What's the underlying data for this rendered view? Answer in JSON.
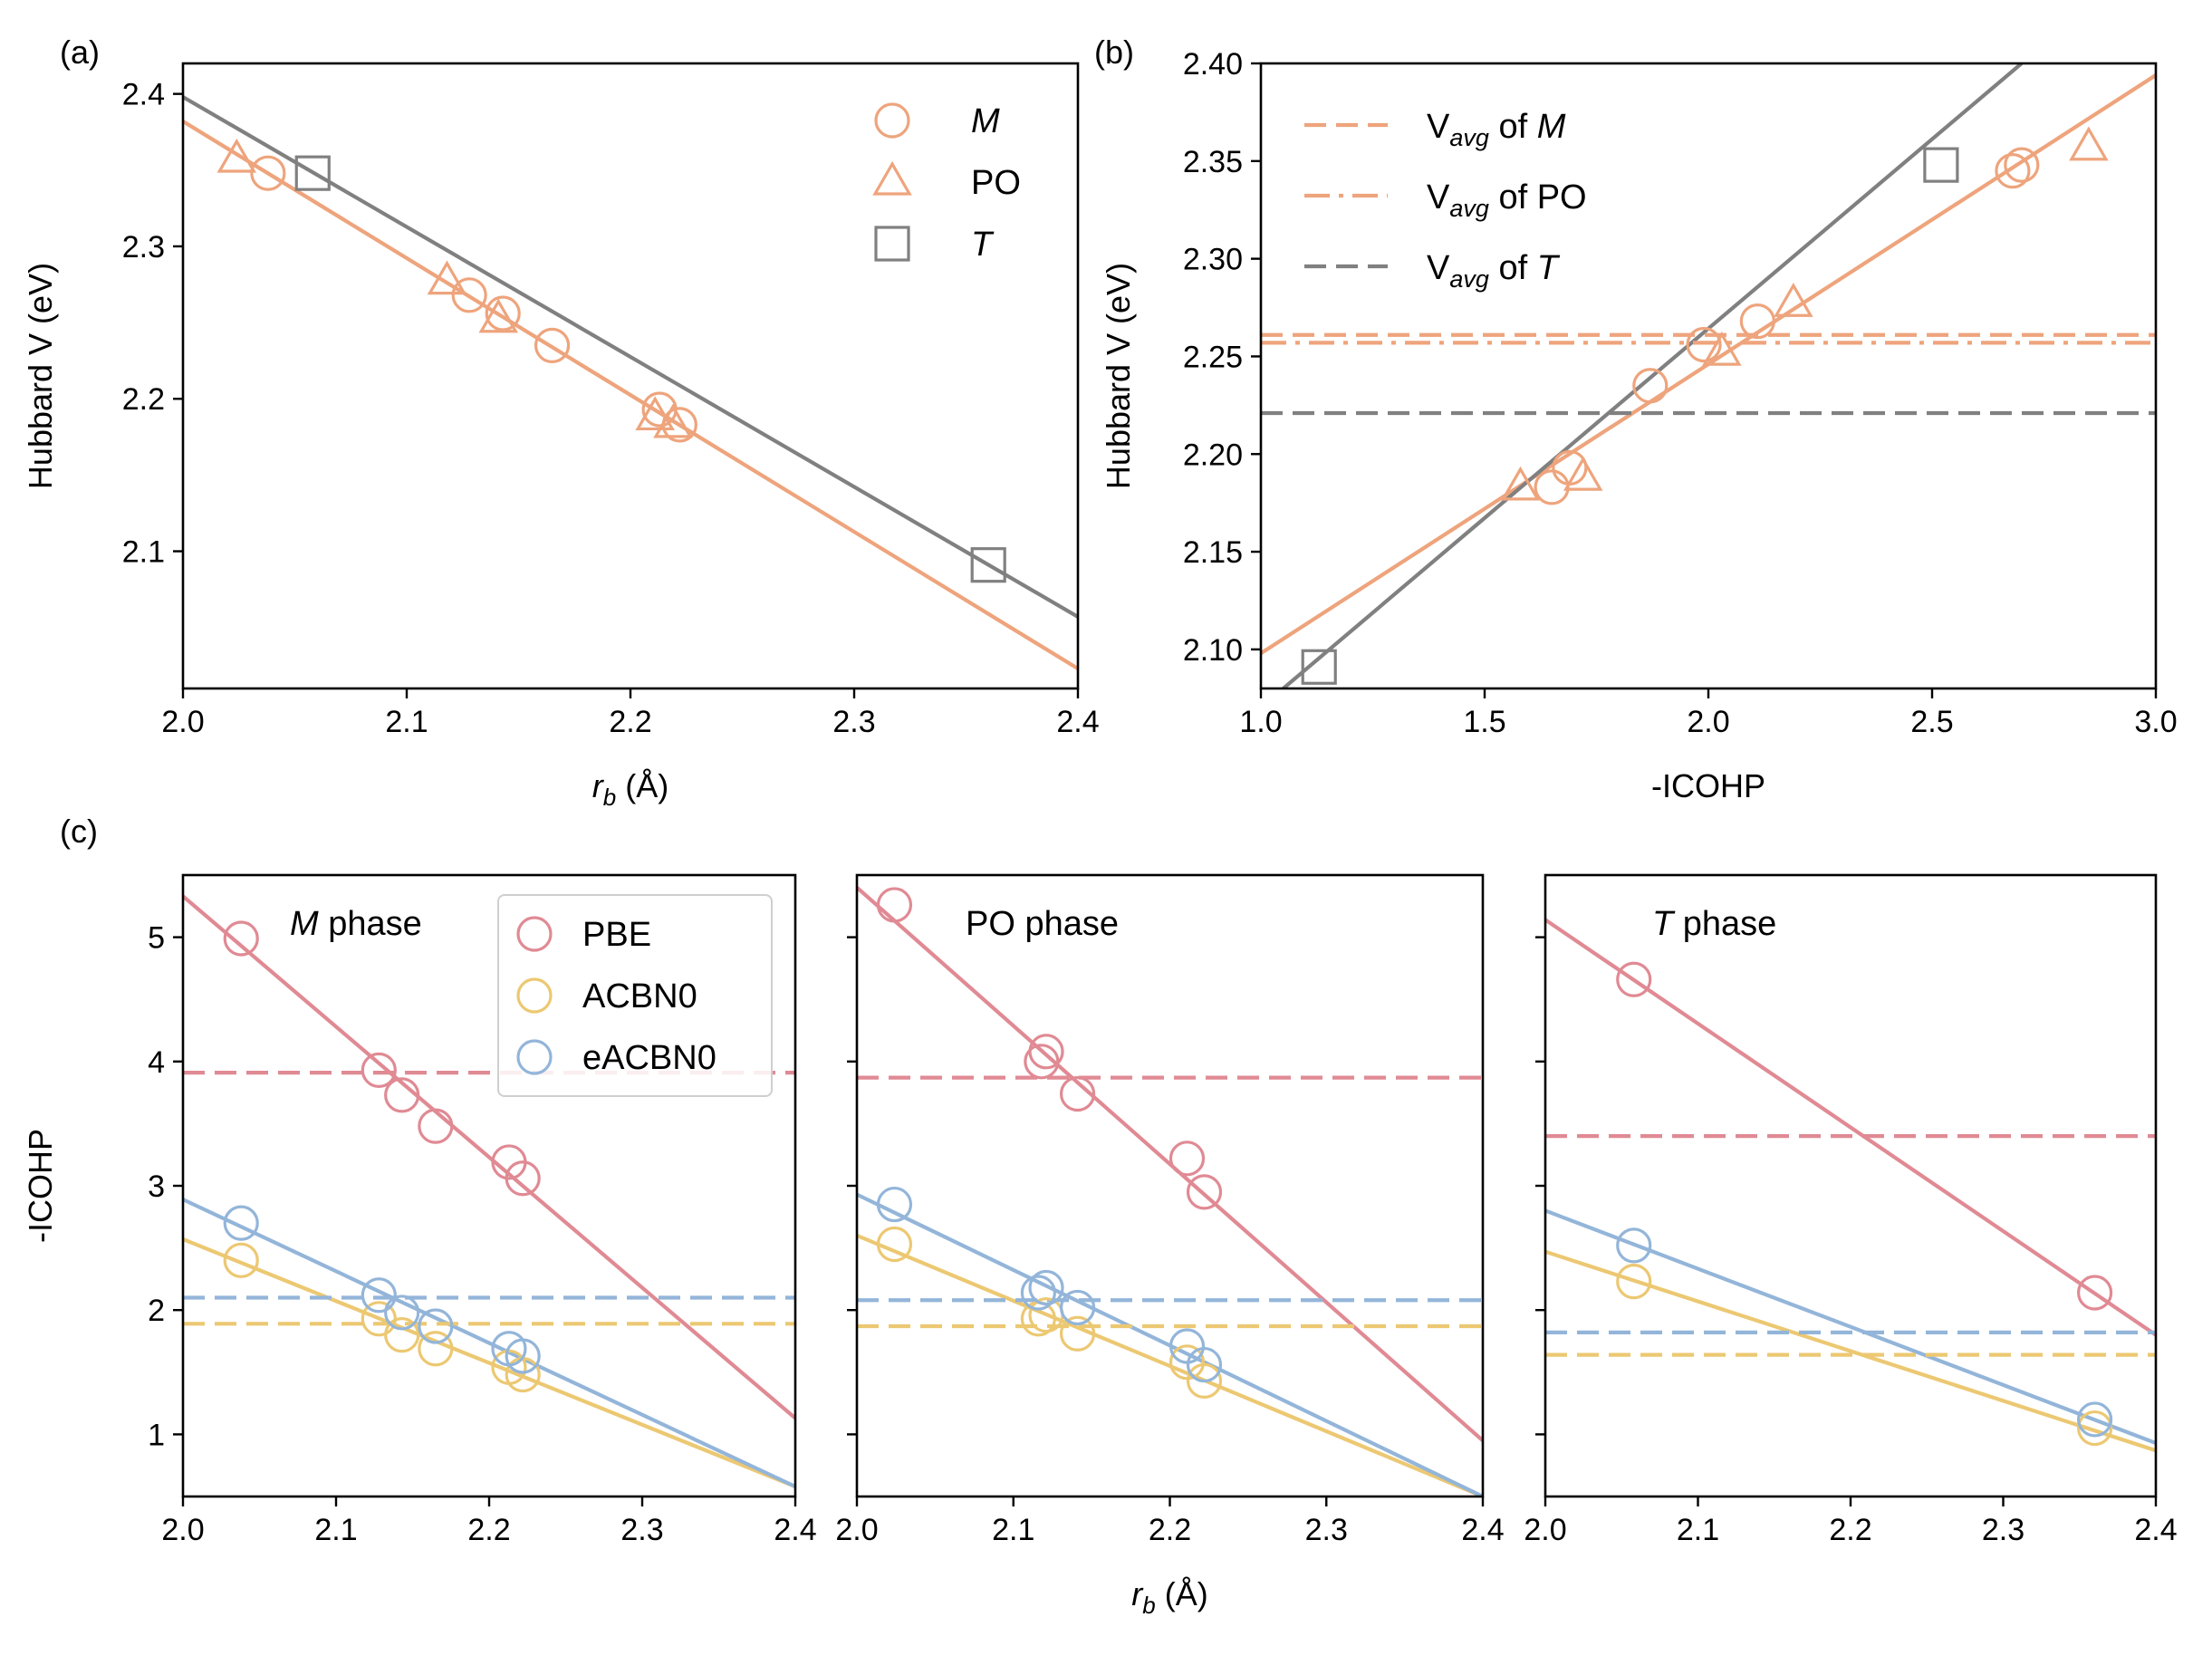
{
  "colors": {
    "M": "#eea47c",
    "PO": "#eea47c",
    "T": "#808080",
    "PBE": "#e08a94",
    "ACBN0": "#ecc872",
    "eACBN0": "#93b5d9"
  },
  "panel_labels": {
    "a": "(a)",
    "b": "(b)",
    "c": "(c)"
  },
  "chart_data": [
    {
      "id": "a",
      "type": "scatter",
      "xlabel_main": "r",
      "xlabel_sub": "b",
      "xlabel_unit": " (Å)",
      "ylabel": "Hubbard V (eV)",
      "xlim": [
        2.0,
        2.4
      ],
      "ylim": [
        2.01,
        2.42
      ],
      "xticks": [
        2.0,
        2.1,
        2.2,
        2.3,
        2.4
      ],
      "xtick_labels": [
        "2.0",
        "2.1",
        "2.2",
        "2.3",
        "2.4"
      ],
      "yticks": [
        2.1,
        2.2,
        2.3,
        2.4
      ],
      "ytick_labels": [
        "2.1",
        "2.2",
        "2.3",
        "2.4"
      ],
      "legend": [
        "M",
        "PO",
        "T"
      ],
      "series": [
        {
          "name": "M",
          "marker": "circle",
          "color": "#eea47c",
          "x": [
            2.038,
            2.128,
            2.143,
            2.165,
            2.213,
            2.222
          ],
          "y": [
            2.348,
            2.268,
            2.256,
            2.235,
            2.193,
            2.183
          ]
        },
        {
          "name": "PO",
          "marker": "triangle",
          "color": "#eea47c",
          "x": [
            2.024,
            2.118,
            2.141,
            2.211,
            2.219
          ],
          "y": [
            2.357,
            2.277,
            2.252,
            2.188,
            2.183
          ]
        },
        {
          "name": "T",
          "marker": "square",
          "color": "#808080",
          "x": [
            2.058,
            2.36
          ],
          "y": [
            2.348,
            2.091
          ]
        }
      ],
      "lines": [
        {
          "color": "#eea47c",
          "style": "solid",
          "x": [
            2.0,
            2.4
          ],
          "y": [
            2.382,
            2.023
          ]
        },
        {
          "color": "#808080",
          "style": "solid",
          "x": [
            2.0,
            2.4
          ],
          "y": [
            2.398,
            2.057
          ]
        }
      ]
    },
    {
      "id": "b",
      "type": "scatter",
      "xlabel": "-ICOHP",
      "ylabel": "Hubbard V (eV)",
      "xlim": [
        1.0,
        3.0
      ],
      "ylim": [
        2.08,
        2.4
      ],
      "xticks": [
        1.0,
        1.5,
        2.0,
        2.5,
        3.0
      ],
      "xtick_labels": [
        "1.0",
        "1.5",
        "2.0",
        "2.5",
        "3.0"
      ],
      "yticks": [
        2.1,
        2.15,
        2.2,
        2.25,
        2.3,
        2.35,
        2.4
      ],
      "ytick_labels": [
        "2.10",
        "2.15",
        "2.20",
        "2.25",
        "2.30",
        "2.35",
        "2.40"
      ],
      "legend": [
        {
          "pre": "V",
          "sub": "avg",
          "mid": " of ",
          "it": "M",
          "post": ""
        },
        {
          "pre": "V",
          "sub": "avg",
          "mid": " of PO",
          "it": "",
          "post": ""
        },
        {
          "pre": "V",
          "sub": "avg",
          "mid": " of ",
          "it": "T",
          "post": ""
        }
      ],
      "series": [
        {
          "name": "M",
          "marker": "circle",
          "color": "#eea47c",
          "x": [
            2.68,
            2.7,
            2.11,
            1.99,
            1.87,
            1.69,
            1.65
          ],
          "y": [
            2.345,
            2.348,
            2.268,
            2.256,
            2.235,
            2.193,
            2.183
          ]
        },
        {
          "name": "PO",
          "marker": "triangle",
          "color": "#eea47c",
          "x": [
            2.85,
            2.19,
            2.03,
            1.72,
            1.58
          ],
          "y": [
            2.357,
            2.277,
            2.252,
            2.188,
            2.183
          ]
        },
        {
          "name": "T",
          "marker": "square",
          "color": "#808080",
          "x": [
            2.52,
            1.13
          ],
          "y": [
            2.348,
            2.091
          ]
        }
      ],
      "lines": [
        {
          "color": "#eea47c",
          "style": "solid",
          "x": [
            1.0,
            3.0
          ],
          "y": [
            2.098,
            2.394
          ]
        },
        {
          "color": "#808080",
          "style": "solid",
          "x": [
            1.05,
            2.7
          ],
          "y": [
            2.08,
            2.4
          ]
        },
        {
          "color": "#eea47c",
          "style": "dashed",
          "x": [
            1.0,
            3.0
          ],
          "y": [
            2.261,
            2.261
          ]
        },
        {
          "color": "#eea47c",
          "style": "dashdot",
          "x": [
            1.0,
            3.0
          ],
          "y": [
            2.257,
            2.257
          ]
        },
        {
          "color": "#808080",
          "style": "dashed",
          "x": [
            1.0,
            3.0
          ],
          "y": [
            2.221,
            2.221
          ]
        }
      ]
    },
    {
      "id": "c1",
      "type": "scatter",
      "phase_it": "M",
      "phase_rest": " phase",
      "ylabel": "-ICOHP",
      "xlim": [
        2.0,
        2.4
      ],
      "ylim": [
        0.5,
        5.5
      ],
      "xticks": [
        2.0,
        2.1,
        2.2,
        2.3,
        2.4
      ],
      "xtick_labels": [
        "2.0",
        "2.1",
        "2.2",
        "2.3",
        "2.4"
      ],
      "yticks": [
        1,
        2,
        3,
        4,
        5
      ],
      "ytick_labels": [
        "1",
        "2",
        "3",
        "4",
        "5"
      ],
      "legend": [
        "PBE",
        "ACBN0",
        "eACBN0"
      ],
      "series": [
        {
          "name": "PBE",
          "marker": "circle",
          "color": "#e08a94",
          "x": [
            2.038,
            2.128,
            2.143,
            2.165,
            2.213,
            2.222
          ],
          "y": [
            4.99,
            3.93,
            3.73,
            3.48,
            3.19,
            3.06
          ]
        },
        {
          "name": "ACBN0",
          "marker": "circle",
          "color": "#ecc872",
          "x": [
            2.038,
            2.128,
            2.143,
            2.165,
            2.213,
            2.222
          ],
          "y": [
            2.4,
            1.93,
            1.8,
            1.69,
            1.54,
            1.48
          ]
        },
        {
          "name": "eACBN0",
          "marker": "circle",
          "color": "#93b5d9",
          "x": [
            2.038,
            2.128,
            2.143,
            2.165,
            2.213,
            2.222
          ],
          "y": [
            2.7,
            2.12,
            1.98,
            1.87,
            1.69,
            1.63
          ]
        }
      ],
      "lines": [
        {
          "color": "#e08a94",
          "style": "solid",
          "x": [
            2.0,
            2.4
          ],
          "y": [
            5.33,
            1.13
          ]
        },
        {
          "color": "#ecc872",
          "style": "solid",
          "x": [
            2.0,
            2.4
          ],
          "y": [
            2.57,
            0.58
          ]
        },
        {
          "color": "#93b5d9",
          "style": "solid",
          "x": [
            2.0,
            2.4
          ],
          "y": [
            2.89,
            0.58
          ]
        },
        {
          "color": "#e08a94",
          "style": "dashed",
          "x": [
            2.0,
            2.4
          ],
          "y": [
            3.91,
            3.91
          ]
        },
        {
          "color": "#93b5d9",
          "style": "dashed",
          "x": [
            2.0,
            2.4
          ],
          "y": [
            2.1,
            2.1
          ]
        },
        {
          "color": "#ecc872",
          "style": "dashed",
          "x": [
            2.0,
            2.4
          ],
          "y": [
            1.89,
            1.89
          ]
        }
      ]
    },
    {
      "id": "c2",
      "type": "scatter",
      "phase_it": "",
      "phase_rest": "PO phase",
      "xlabel_main": "r",
      "xlabel_sub": "b",
      "xlabel_unit": " (Å)",
      "xlim": [
        2.0,
        2.4
      ],
      "ylim": [
        0.5,
        5.5
      ],
      "xticks": [
        2.0,
        2.1,
        2.2,
        2.3,
        2.4
      ],
      "xtick_labels": [
        "2.0",
        "2.1",
        "2.2",
        "2.3",
        "2.4"
      ],
      "yticks": [
        1,
        2,
        3,
        4,
        5
      ],
      "ytick_labels": [],
      "series": [
        {
          "name": "PBE",
          "marker": "circle",
          "color": "#e08a94",
          "x": [
            2.024,
            2.118,
            2.121,
            2.141,
            2.211,
            2.222
          ],
          "y": [
            5.26,
            4.0,
            4.08,
            3.74,
            3.22,
            2.95
          ]
        },
        {
          "name": "ACBN0",
          "marker": "circle",
          "color": "#ecc872",
          "x": [
            2.024,
            2.116,
            2.121,
            2.141,
            2.211,
            2.222
          ],
          "y": [
            2.53,
            1.93,
            1.96,
            1.81,
            1.58,
            1.43
          ]
        },
        {
          "name": "eACBN0",
          "marker": "circle",
          "color": "#93b5d9",
          "x": [
            2.024,
            2.116,
            2.121,
            2.141,
            2.211,
            2.222
          ],
          "y": [
            2.85,
            2.14,
            2.18,
            2.02,
            1.71,
            1.56
          ]
        }
      ],
      "lines": [
        {
          "color": "#e08a94",
          "style": "solid",
          "x": [
            2.0,
            2.4
          ],
          "y": [
            5.4,
            0.95
          ]
        },
        {
          "color": "#ecc872",
          "style": "solid",
          "x": [
            2.0,
            2.4
          ],
          "y": [
            2.6,
            0.5
          ]
        },
        {
          "color": "#93b5d9",
          "style": "solid",
          "x": [
            2.0,
            2.4
          ],
          "y": [
            2.93,
            0.5
          ]
        },
        {
          "color": "#e08a94",
          "style": "dashed",
          "x": [
            2.0,
            2.4
          ],
          "y": [
            3.87,
            3.87
          ]
        },
        {
          "color": "#93b5d9",
          "style": "dashed",
          "x": [
            2.0,
            2.4
          ],
          "y": [
            2.08,
            2.08
          ]
        },
        {
          "color": "#ecc872",
          "style": "dashed",
          "x": [
            2.0,
            2.4
          ],
          "y": [
            1.87,
            1.87
          ]
        }
      ]
    },
    {
      "id": "c3",
      "type": "scatter",
      "phase_it": "T",
      "phase_rest": " phase",
      "xlim": [
        2.0,
        2.4
      ],
      "ylim": [
        0.5,
        5.5
      ],
      "xticks": [
        2.0,
        2.1,
        2.2,
        2.3,
        2.4
      ],
      "xtick_labels": [
        "2.0",
        "2.1",
        "2.2",
        "2.3",
        "2.4"
      ],
      "yticks": [
        1,
        2,
        3,
        4,
        5
      ],
      "ytick_labels": [],
      "series": [
        {
          "name": "PBE",
          "marker": "circle",
          "color": "#e08a94",
          "x": [
            2.058,
            2.36
          ],
          "y": [
            4.66,
            2.14
          ]
        },
        {
          "name": "ACBN0",
          "marker": "circle",
          "color": "#ecc872",
          "x": [
            2.058,
            2.36
          ],
          "y": [
            2.23,
            1.05
          ]
        },
        {
          "name": "eACBN0",
          "marker": "circle",
          "color": "#93b5d9",
          "x": [
            2.058,
            2.36
          ],
          "y": [
            2.52,
            1.12
          ]
        }
      ],
      "lines": [
        {
          "color": "#e08a94",
          "style": "solid",
          "x": [
            2.0,
            2.4
          ],
          "y": [
            5.14,
            1.8
          ]
        },
        {
          "color": "#ecc872",
          "style": "solid",
          "x": [
            2.0,
            2.4
          ],
          "y": [
            2.47,
            0.87
          ]
        },
        {
          "color": "#93b5d9",
          "style": "solid",
          "x": [
            2.0,
            2.4
          ],
          "y": [
            2.8,
            0.93
          ]
        },
        {
          "color": "#e08a94",
          "style": "dashed",
          "x": [
            2.0,
            2.4
          ],
          "y": [
            3.4,
            3.4
          ]
        },
        {
          "color": "#93b5d9",
          "style": "dashed",
          "x": [
            2.0,
            2.4
          ],
          "y": [
            1.82,
            1.82
          ]
        },
        {
          "color": "#ecc872",
          "style": "dashed",
          "x": [
            2.0,
            2.4
          ],
          "y": [
            1.64,
            1.64
          ]
        }
      ]
    }
  ]
}
